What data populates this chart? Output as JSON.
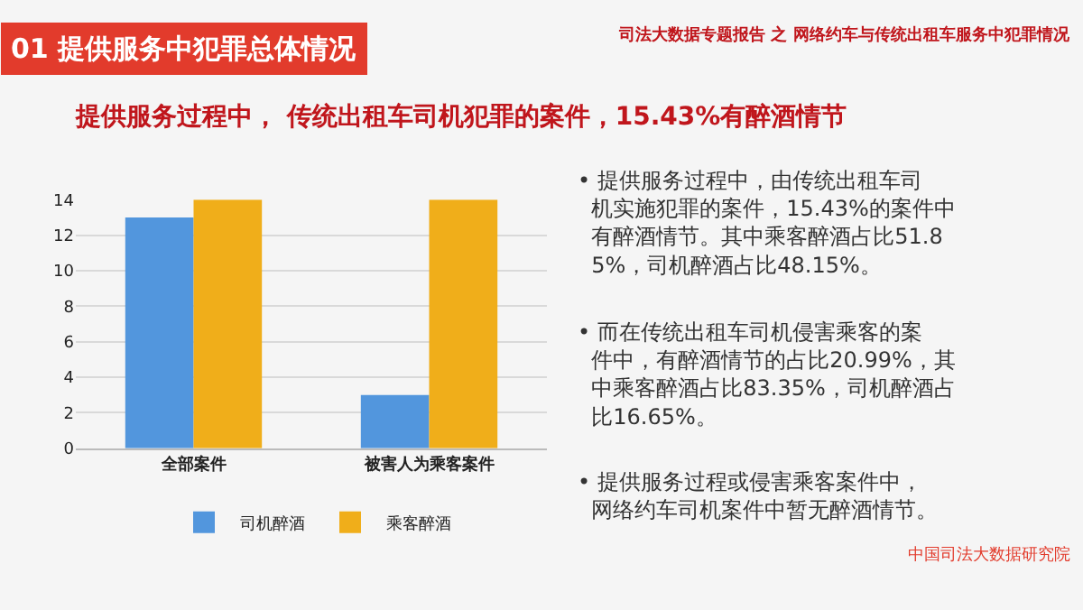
{
  "chart_data": {
    "type": "bar",
    "title": "01 提供服务中犯罪总体情况",
    "subtitle": "提供服务过程中， 传统出租车司机犯罪的案件，15.43%有醉酒情节",
    "annotations": [
      "司法大数据专题报告 之 网络约车与传统出租车服务中犯罪情况",
      "• 提供服务过程中，由传统出租车司机实施犯罪的案件，15.43%的案件中有醉酒情节。其中乘客醉酒占比51.85%，司机醉酒占比48.15%。",
      "• 而在传统出租车司机侵害乘客的案件中，有醉酒情节的占比20.99%，其中乘客醉酒占比83.35%，司机醉酒占比16.65%。",
      "• 提供服务过程或侵害乘客案件中，网络约车司机案件中暂无醉酒情节。",
      "中国司法大数据研究院"
    ],
    "categories": [
      "全部案件",
      "被害人为乘客案件"
    ],
    "series": [
      {
        "name": "司机醉酒",
        "color": "#5296dd",
        "values": [
          13,
          3
        ]
      },
      {
        "name": "乘客醉酒",
        "color": "#f0ae1a",
        "values": [
          14,
          14
        ]
      }
    ],
    "ylim": [
      0,
      14
    ],
    "yticks": [
      0,
      2,
      4,
      6,
      8,
      10,
      12,
      14
    ],
    "grid": "y",
    "legend": "bottom"
  }
}
